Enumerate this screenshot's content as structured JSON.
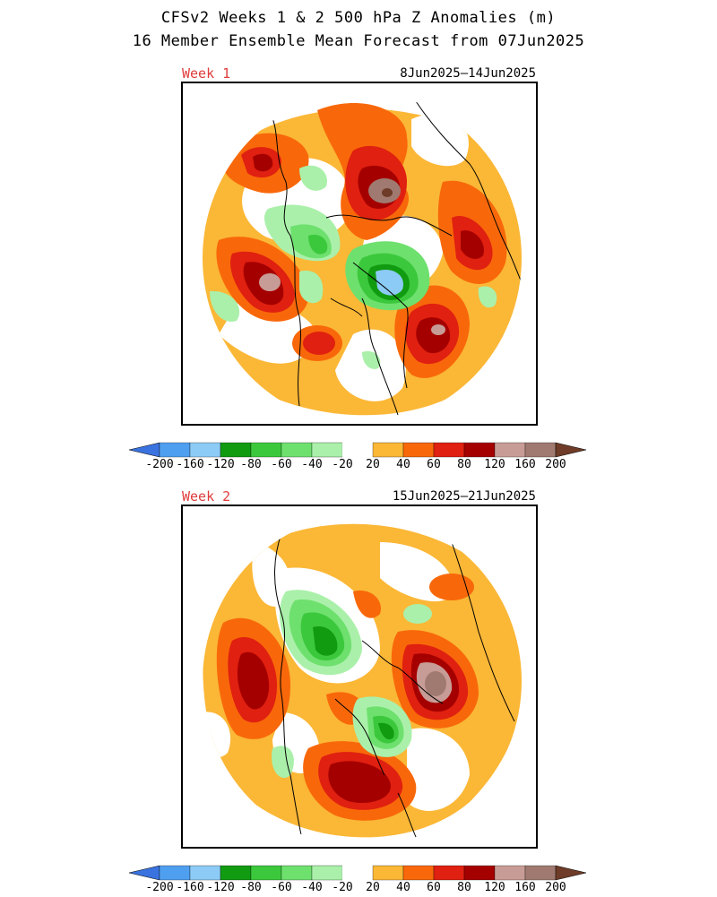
{
  "title": {
    "line1": "CFSv2 Weeks 1 & 2 500 hPa Z Anomalies (m)",
    "line2": "16 Member Ensemble Mean Forecast from 07Jun2025"
  },
  "panels": [
    {
      "week": "Week 1",
      "dates": "8Jun2025—14Jun2025"
    },
    {
      "week": "Week 2",
      "dates": "15Jun2025—21Jun2025"
    }
  ],
  "colorbar": {
    "colors": [
      "#3a73e0",
      "#4f9ff0",
      "#8ccbf5",
      "#119b11",
      "#3cc83c",
      "#6ee06e",
      "#aaf0aa",
      "#ffffff",
      "#fbb736",
      "#f8680a",
      "#e02010",
      "#a50000",
      "#c89c96",
      "#a07a70",
      "#6e3c28"
    ],
    "ticks": [
      "-200",
      "-160",
      "-120",
      "-80",
      "-60",
      "-40",
      "-20",
      "20",
      "40",
      "60",
      "80",
      "120",
      "160",
      "200"
    ]
  },
  "legend_levels": {
    "-200": "#3a73e0",
    "-160": "#4f9ff0",
    "-120": "#8ccbf5",
    "-80": "#119b11",
    "-60": "#3cc83c",
    "-40": "#6ee06e",
    "-20": "#aaf0aa",
    "20": "#fbb736",
    "40": "#f8680a",
    "60": "#e02010",
    "80": "#a50000",
    "120": "#c89c96",
    "160": "#a07a70",
    "200": "#6e3c28"
  }
}
